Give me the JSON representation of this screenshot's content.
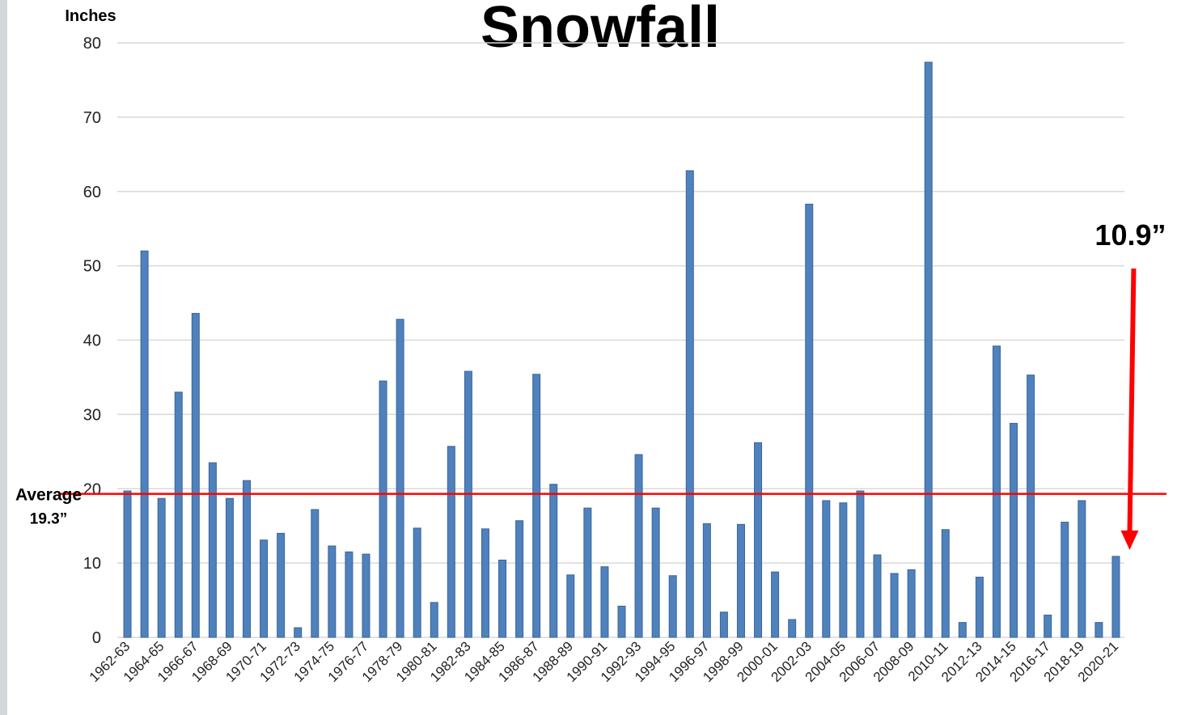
{
  "chart_data": {
    "type": "bar",
    "title": "Snowfall",
    "y_label": "Inches",
    "categories": [
      "1962-63",
      null,
      "1964-65",
      null,
      "1966-67",
      null,
      "1968-69",
      null,
      "1970-71",
      null,
      "1972-73",
      null,
      "1974-75",
      null,
      "1976-77",
      null,
      "1978-79",
      null,
      "1980-81",
      null,
      "1982-83",
      null,
      "1984-85",
      null,
      "1986-87",
      null,
      "1988-89",
      null,
      "1990-91",
      null,
      "1992-93",
      null,
      "1994-95",
      null,
      "1996-97",
      null,
      "1998-99",
      null,
      "2000-01",
      null,
      "2002-03",
      null,
      "2004-05",
      null,
      "2006-07",
      null,
      "2008-09",
      null,
      "2010-11",
      null,
      "2012-13",
      null,
      "2014-15",
      null,
      "2016-17",
      null,
      "2018-19",
      null,
      "2020-21"
    ],
    "values": [
      19.7,
      52.0,
      18.7,
      33.0,
      43.6,
      23.5,
      18.7,
      21.1,
      13.1,
      14.0,
      1.3,
      17.2,
      12.3,
      11.5,
      11.2,
      34.5,
      42.8,
      14.7,
      4.7,
      25.7,
      35.8,
      14.6,
      10.4,
      15.7,
      35.4,
      20.6,
      8.4,
      17.4,
      9.5,
      4.2,
      24.6,
      17.4,
      8.3,
      62.8,
      15.3,
      3.4,
      15.2,
      26.2,
      8.8,
      2.4,
      58.3,
      18.4,
      18.1,
      19.7,
      11.1,
      8.6,
      9.1,
      77.4,
      14.5,
      2.0,
      8.1,
      39.2,
      28.8,
      35.3,
      3.0,
      15.5,
      18.4,
      2.0,
      10.9
    ],
    "value_labels": [
      null,
      null,
      null,
      null,
      null,
      null,
      null,
      null,
      null,
      null,
      null,
      null,
      null,
      null,
      null,
      null,
      null,
      null,
      null,
      null,
      null,
      null,
      null,
      null,
      null,
      null,
      null,
      null,
      null,
      null,
      null,
      null,
      null,
      null,
      null,
      null,
      null,
      null,
      null,
      null,
      null,
      null,
      null,
      null,
      null,
      null,
      null,
      null,
      null,
      null,
      null,
      null,
      null,
      null,
      null,
      null,
      null,
      null,
      "10.9”"
    ],
    "color": "#4f81bd",
    "average": {
      "label": "Average",
      "value": 19.3,
      "value_label": "19.3”",
      "color": "#ff0000"
    },
    "ylim": [
      0,
      80
    ],
    "yticks": [
      0,
      10,
      20,
      30,
      40,
      50,
      60,
      70,
      80
    ],
    "grid": true
  }
}
